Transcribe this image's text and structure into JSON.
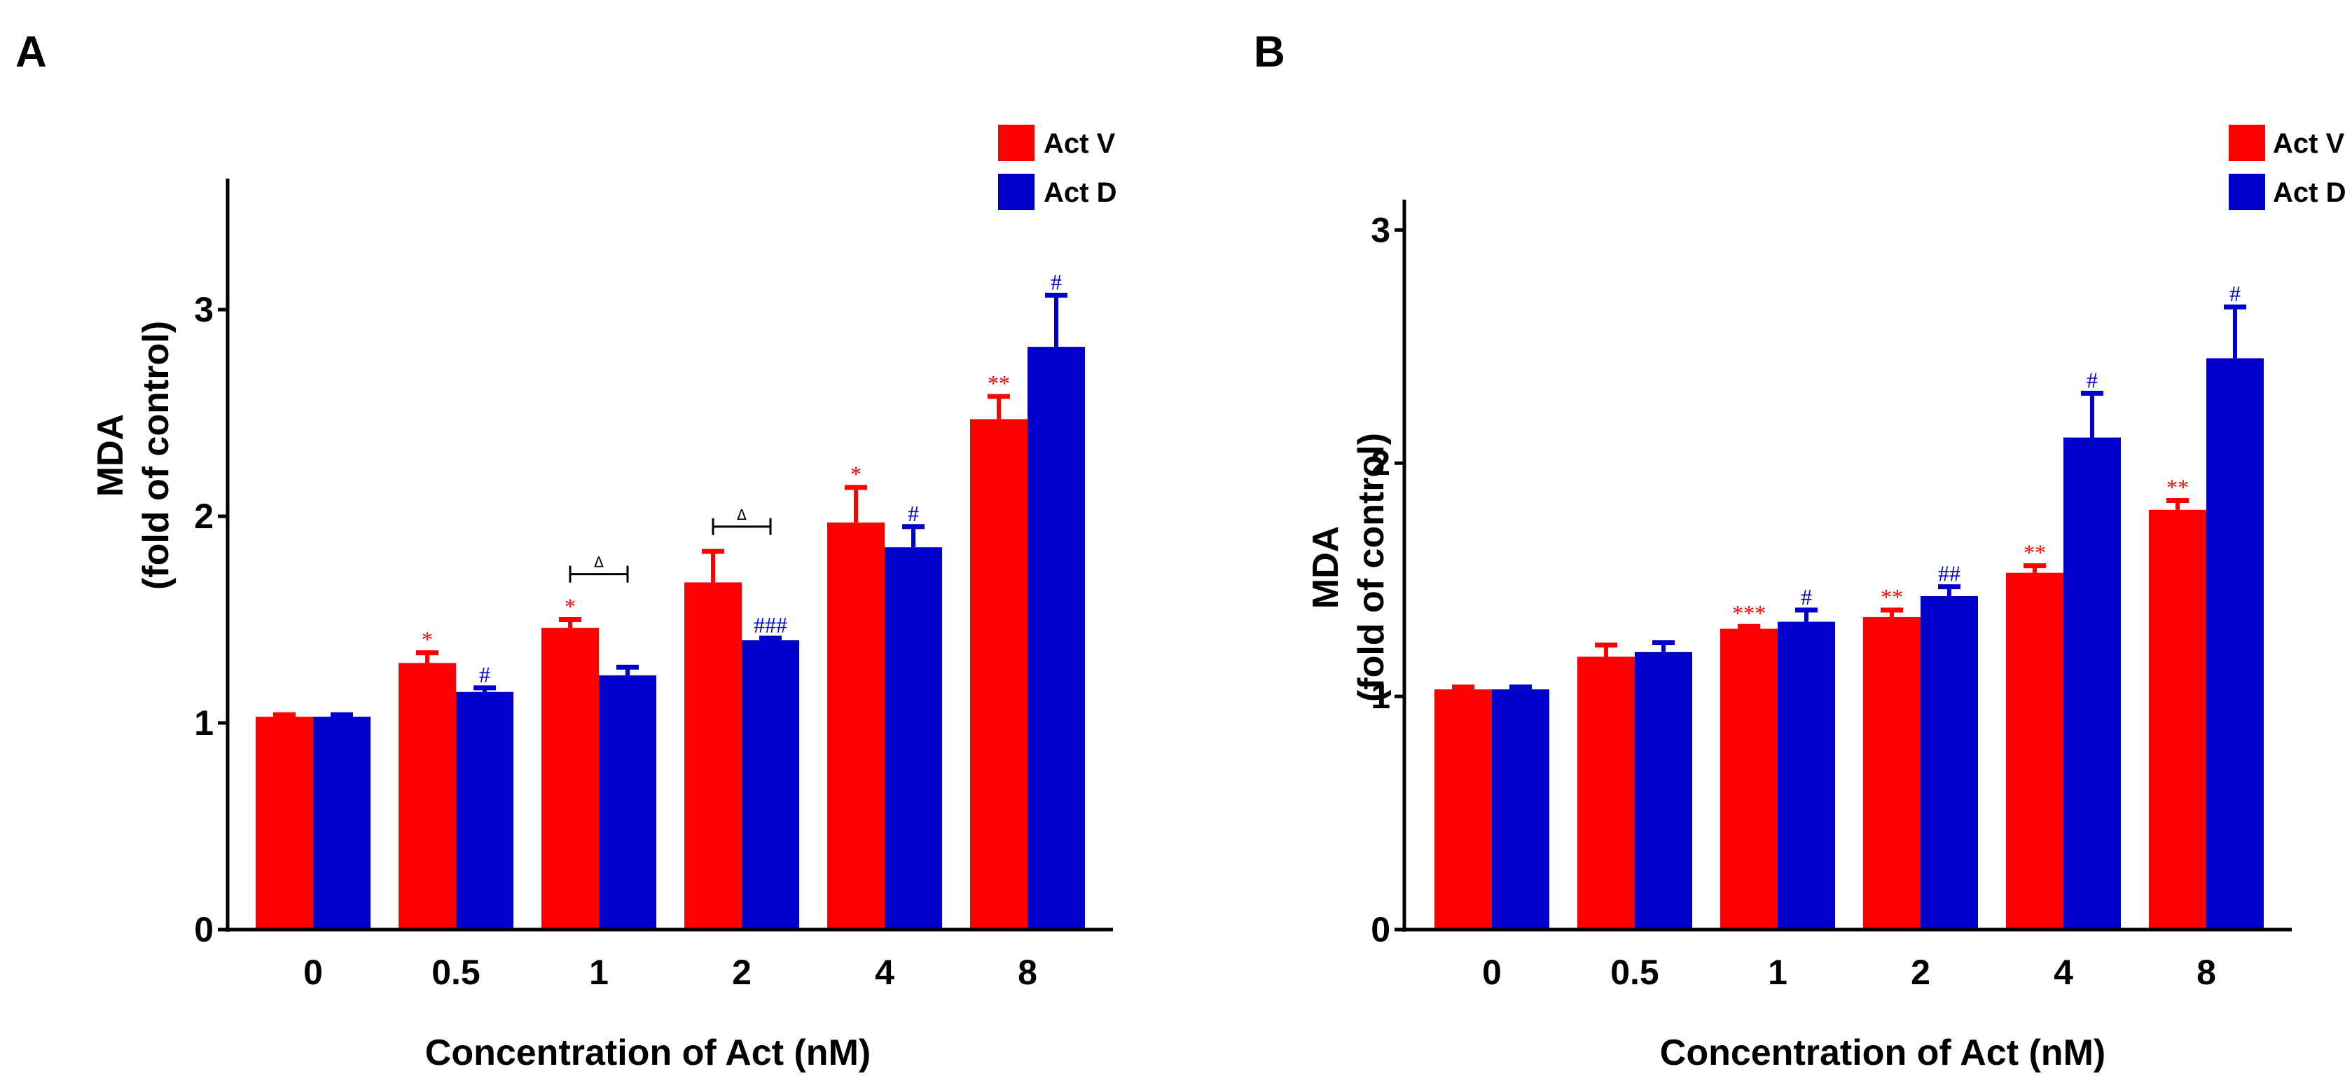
{
  "colors": {
    "act_v": "#ff0000",
    "act_d": "#0000cc",
    "axis": "#000000",
    "bracket": "#000000"
  },
  "chart_data": [
    {
      "type": "bar",
      "panel": "A",
      "ylabel_line1": "MDA",
      "ylabel_line2": "(fold of control)",
      "xlabel": "Concentration of Act (nM)",
      "categories": [
        "0",
        "0.5",
        "1",
        "2",
        "4",
        "8"
      ],
      "ylim": [
        0,
        3.6
      ],
      "yticks": [
        0,
        1,
        2,
        3
      ],
      "series": [
        {
          "name": "Act V",
          "color": "#ff0000",
          "values": [
            1.03,
            1.29,
            1.46,
            1.68,
            1.97,
            2.47
          ],
          "errors": [
            0.01,
            0.05,
            0.04,
            0.15,
            0.17,
            0.11
          ],
          "sig": [
            "",
            "*",
            "*",
            "",
            "*",
            "**"
          ]
        },
        {
          "name": "Act D",
          "color": "#0000cc",
          "values": [
            1.03,
            1.15,
            1.23,
            1.4,
            1.85,
            2.82
          ],
          "errors": [
            0.01,
            0.02,
            0.04,
            0.01,
            0.1,
            0.25
          ],
          "sig": [
            "",
            "#",
            "",
            "###",
            "#",
            "#"
          ]
        }
      ],
      "brackets": [
        {
          "category_index": 2,
          "y": 1.72,
          "label": "Δ"
        },
        {
          "category_index": 3,
          "y": 1.95,
          "label": "Δ"
        }
      ]
    },
    {
      "type": "bar",
      "panel": "B",
      "ylabel_line1": "MDA",
      "ylabel_line2": "(fold of control)",
      "xlabel": "Concentration of Act (nM)",
      "categories": [
        "0",
        "0.5",
        "1",
        "2",
        "4",
        "8"
      ],
      "ylim": [
        0,
        3.1
      ],
      "yticks": [
        0,
        1,
        2,
        3
      ],
      "series": [
        {
          "name": "Act V",
          "color": "#ff0000",
          "values": [
            1.03,
            1.17,
            1.29,
            1.34,
            1.53,
            1.8
          ],
          "errors": [
            0.01,
            0.05,
            0.01,
            0.03,
            0.03,
            0.04
          ],
          "sig": [
            "",
            "",
            "***",
            "**",
            "**",
            "**"
          ]
        },
        {
          "name": "Act D",
          "color": "#0000cc",
          "values": [
            1.03,
            1.19,
            1.32,
            1.43,
            2.11,
            2.45
          ],
          "errors": [
            0.01,
            0.04,
            0.05,
            0.04,
            0.19,
            0.22
          ],
          "sig": [
            "",
            "",
            "#",
            "##",
            "#",
            "#"
          ]
        }
      ],
      "brackets": []
    }
  ]
}
